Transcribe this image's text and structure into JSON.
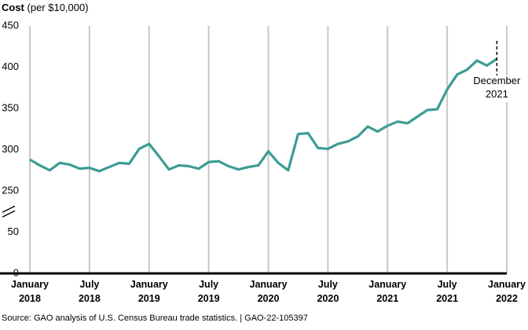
{
  "chart_data": {
    "type": "line",
    "ylabel": "Cost",
    "ylabel_unit": "(per $10,000)",
    "source": "Source: GAO analysis of U.S. Census Bureau trade statistics.  |  GAO-22-105397",
    "x": [
      "2018-01",
      "2018-02",
      "2018-03",
      "2018-04",
      "2018-05",
      "2018-06",
      "2018-07",
      "2018-08",
      "2018-09",
      "2018-10",
      "2018-11",
      "2018-12",
      "2019-01",
      "2019-02",
      "2019-03",
      "2019-04",
      "2019-05",
      "2019-06",
      "2019-07",
      "2019-08",
      "2019-09",
      "2019-10",
      "2019-11",
      "2019-12",
      "2020-01",
      "2020-02",
      "2020-03",
      "2020-04",
      "2020-05",
      "2020-06",
      "2020-07",
      "2020-08",
      "2020-09",
      "2020-10",
      "2020-11",
      "2020-12",
      "2021-01",
      "2021-02",
      "2021-03",
      "2021-04",
      "2021-05",
      "2021-06",
      "2021-07",
      "2021-08",
      "2021-09",
      "2021-10",
      "2021-11",
      "2021-12"
    ],
    "series": [
      {
        "name": "Cost",
        "color": "#3b9c94",
        "values": [
          288,
          281,
          275,
          284,
          282,
          277,
          278,
          274,
          279,
          284,
          283,
          301,
          307,
          292,
          276,
          281,
          280,
          277,
          285,
          286,
          280,
          276,
          279,
          281,
          298,
          284,
          275,
          319,
          320,
          302,
          301,
          307,
          310,
          316,
          328,
          322,
          329,
          334,
          332,
          340,
          348,
          349,
          373,
          391,
          397,
          408,
          402,
          410
        ]
      }
    ],
    "xlim": [
      "2018-01",
      "2022-01"
    ],
    "xticks": [
      {
        "value": "2018-01",
        "label": "January 2018"
      },
      {
        "value": "2018-07",
        "label": "July 2018"
      },
      {
        "value": "2019-01",
        "label": "January 2019"
      },
      {
        "value": "2019-07",
        "label": "July 2019"
      },
      {
        "value": "2020-01",
        "label": "January 2020"
      },
      {
        "value": "2020-07",
        "label": "July 2020"
      },
      {
        "value": "2021-01",
        "label": "January 2021"
      },
      {
        "value": "2021-07",
        "label": "July 2021"
      },
      {
        "value": "2022-01",
        "label": "January 2022"
      }
    ],
    "ylim": [
      0,
      450
    ],
    "yticks": [
      0,
      50,
      250,
      300,
      350,
      400,
      450
    ],
    "axis_break": true,
    "grid": true,
    "annotation": {
      "text": "December 2021",
      "x": "2021-12"
    }
  }
}
